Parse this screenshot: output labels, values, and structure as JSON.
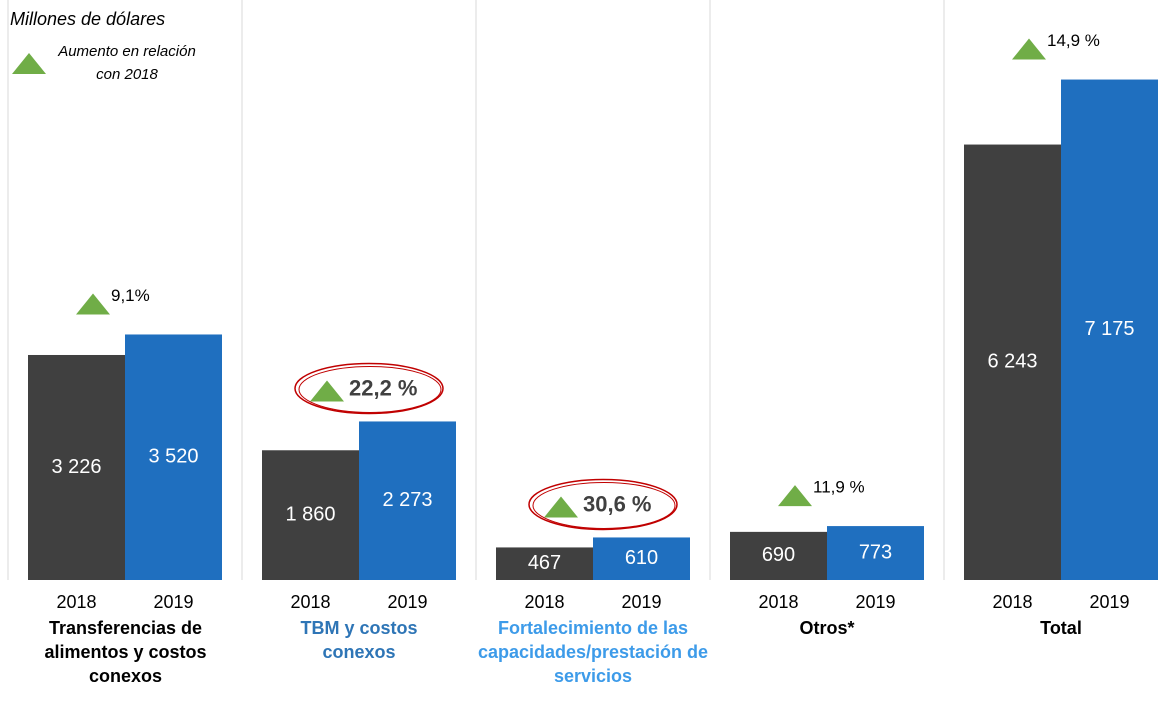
{
  "chart_data": {
    "type": "bar",
    "subtitle": "Millones de dólares",
    "legend_label": "Aumento en relación con 2018",
    "categories": [
      "Transferencias de alimentos y costos conexos",
      "TBM y costos conexos",
      "Fortalecimiento de las capacidades/prestación de servicios",
      "Otros*",
      "Total"
    ],
    "category_colors": [
      "#000000",
      "#2e75b6",
      "#3d9be9",
      "#000000",
      "#000000"
    ],
    "series": [
      {
        "name": "2018",
        "color": "#404040",
        "values": [
          3226,
          1860,
          467,
          690,
          6243
        ],
        "value_labels": [
          "3 226",
          "1 860",
          "467",
          "690",
          "6 243"
        ]
      },
      {
        "name": "2019",
        "color": "#1f6fbf",
        "values": [
          3520,
          2273,
          610,
          773,
          7175
        ],
        "value_labels": [
          "3 520",
          "2 273",
          "610",
          "773",
          "7 175"
        ]
      }
    ],
    "annotations": [
      "9,1%",
      "22,2 %",
      "30,6 %",
      "11,9 %",
      "14,9 %"
    ],
    "highlighted": [
      false,
      true,
      true,
      false,
      false
    ],
    "marker_color": "#70ad47",
    "ylim": [
      0,
      8000
    ]
  }
}
